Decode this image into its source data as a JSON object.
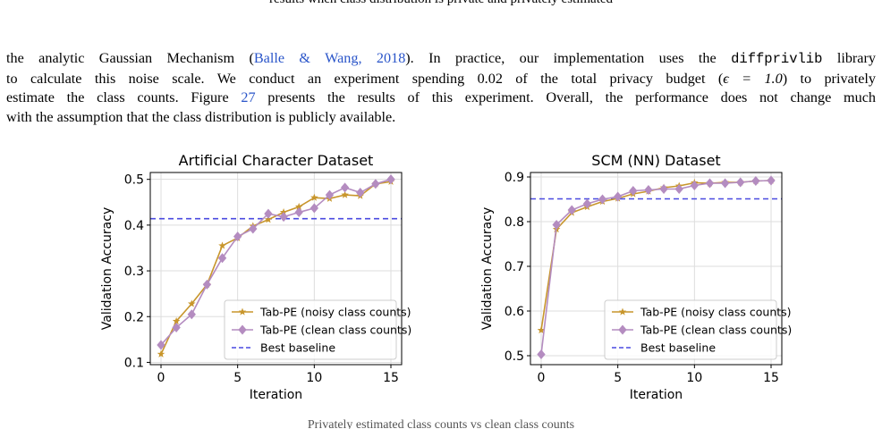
{
  "page": {
    "top_caption": "results when class distribution is private and privately estimated",
    "bottom_caption": "Privately estimated class counts vs clean class counts"
  },
  "paragraph": {
    "l1_a": "the analytic Gaussian Mechanism (",
    "l1_cite": "Balle & Wang, 2018",
    "l1_b": "). In practice, our implementation uses the ",
    "l1_code": "diffprivlib",
    "l1_c": " library",
    "l2_a": "to calculate this noise scale. We conduct an experiment spending 0.02 of the total privacy budget (",
    "l2_math": "ϵ = 1.0",
    "l2_b": ") to privately",
    "l3_a": "estimate the class counts. Figure ",
    "l3_ref": "27",
    "l3_b": " presents the results of this experiment. Overall, the performance does not change much",
    "l4": "with the assumption that the class distribution is publicly available."
  },
  "colors": {
    "noisy": "#c8962c",
    "clean": "#b48cc0",
    "baseline": "#4a4ae0",
    "grid": "#dddddd"
  },
  "chart_data": [
    {
      "type": "line",
      "title": "Artificial Character Dataset",
      "xlabel": "Iteration",
      "ylabel": "Validation Accuracy",
      "xlim": [
        -0.7,
        15.7
      ],
      "ylim": [
        0.095,
        0.515
      ],
      "xticks": [
        0,
        5,
        10,
        15
      ],
      "yticks": [
        0.1,
        0.2,
        0.3,
        0.4,
        0.5
      ],
      "ytick_labels": [
        "0.1",
        "0.2",
        "0.3",
        "0.4",
        "0.5"
      ],
      "grid": true,
      "legend_position": "lower-right",
      "x": [
        0,
        1,
        2,
        3,
        4,
        5,
        6,
        7,
        8,
        9,
        10,
        11,
        12,
        13,
        14,
        15
      ],
      "series": [
        {
          "name": "Tab-PE (noisy class counts)",
          "marker": "star",
          "color": "#c8962c",
          "values": [
            0.118,
            0.19,
            0.228,
            0.27,
            0.355,
            0.372,
            0.398,
            0.412,
            0.428,
            0.44,
            0.46,
            0.458,
            0.466,
            0.464,
            0.49,
            0.495
          ]
        },
        {
          "name": "Tab-PE (clean class counts)",
          "marker": "diamond",
          "color": "#b48cc0",
          "values": [
            0.138,
            0.176,
            0.205,
            0.27,
            0.328,
            0.375,
            0.392,
            0.425,
            0.418,
            0.428,
            0.437,
            0.466,
            0.482,
            0.471,
            0.49,
            0.5
          ]
        }
      ],
      "baseline": {
        "name": "Best baseline",
        "value": 0.414,
        "color": "#4a4ae0"
      }
    },
    {
      "type": "line",
      "title": "SCM (NN) Dataset",
      "xlabel": "Iteration",
      "ylabel": "Validation Accuracy",
      "xlim": [
        -0.7,
        15.7
      ],
      "ylim": [
        0.48,
        0.91
      ],
      "xticks": [
        0,
        5,
        10,
        15
      ],
      "yticks": [
        0.5,
        0.6,
        0.7,
        0.8,
        0.9
      ],
      "ytick_labels": [
        "0.5",
        "0.6",
        "0.7",
        "0.8",
        "0.9"
      ],
      "grid": true,
      "legend_position": "lower-right",
      "x": [
        0,
        1,
        2,
        3,
        4,
        5,
        6,
        7,
        8,
        9,
        10,
        11,
        12,
        13,
        14,
        15
      ],
      "series": [
        {
          "name": "Tab-PE (noisy class counts)",
          "marker": "star",
          "color": "#c8962c",
          "values": [
            0.557,
            0.783,
            0.82,
            0.833,
            0.845,
            0.852,
            0.862,
            0.868,
            0.876,
            0.88,
            0.887,
            0.886,
            0.888,
            0.888,
            0.891,
            0.892
          ]
        },
        {
          "name": "Tab-PE (clean class counts)",
          "marker": "diamond",
          "color": "#b48cc0",
          "values": [
            0.503,
            0.793,
            0.826,
            0.84,
            0.85,
            0.856,
            0.869,
            0.871,
            0.873,
            0.873,
            0.881,
            0.886,
            0.886,
            0.888,
            0.891,
            0.892
          ]
        }
      ],
      "baseline": {
        "name": "Best baseline",
        "value": 0.851,
        "color": "#4a4ae0"
      }
    }
  ]
}
